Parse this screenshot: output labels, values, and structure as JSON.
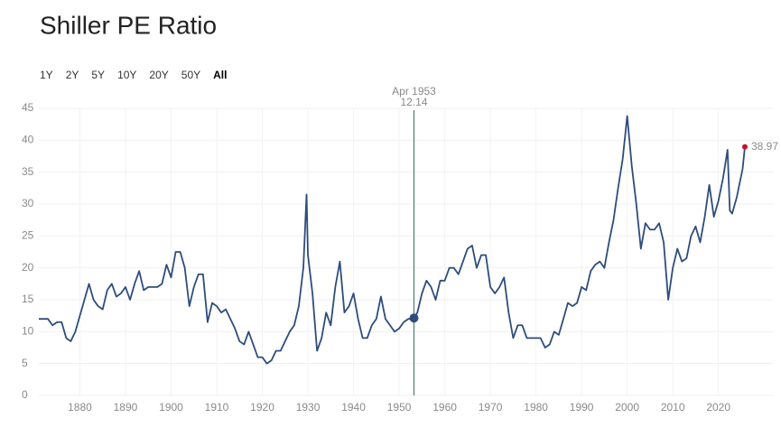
{
  "chart_data": {
    "type": "line",
    "title": "Shiller PE Ratio",
    "ranges": [
      "1Y",
      "2Y",
      "5Y",
      "10Y",
      "20Y",
      "50Y",
      "All"
    ],
    "active_range": 6,
    "hover": {
      "x": 1953.25,
      "label": "Apr 1953",
      "value": 12.14
    },
    "last_color": "#c8102e",
    "xlim": [
      1871,
      2026
    ],
    "ylim": [
      0,
      45
    ],
    "xticks": [
      1880,
      1890,
      1900,
      1910,
      1920,
      1930,
      1940,
      1950,
      1960,
      1970,
      1980,
      1990,
      2000,
      2010,
      2020
    ],
    "yticks": [
      0,
      5,
      10,
      15,
      20,
      25,
      30,
      35,
      40,
      45
    ],
    "grid": true,
    "series": [
      {
        "name": "Shiller PE Ratio",
        "color": "#2e4d7b",
        "x": [
          1871,
          1872,
          1873,
          1874,
          1875,
          1876,
          1877,
          1878,
          1879,
          1880,
          1881,
          1882,
          1883,
          1884,
          1885,
          1886,
          1887,
          1888,
          1889,
          1890,
          1891,
          1892,
          1893,
          1894,
          1895,
          1896,
          1897,
          1898,
          1899,
          1900,
          1901,
          1902,
          1903,
          1904,
          1905,
          1906,
          1907,
          1908,
          1909,
          1910,
          1911,
          1912,
          1913,
          1914,
          1915,
          1916,
          1917,
          1918,
          1919,
          1920,
          1921,
          1922,
          1923,
          1924,
          1925,
          1926,
          1927,
          1928,
          1929,
          1929.7,
          1930,
          1931,
          1932,
          1933,
          1934,
          1935,
          1936,
          1937,
          1938,
          1939,
          1940,
          1941,
          1942,
          1943,
          1944,
          1945,
          1946,
          1947,
          1948,
          1949,
          1950,
          1951,
          1952,
          1953.25,
          1954,
          1955,
          1956,
          1957,
          1958,
          1959,
          1960,
          1961,
          1962,
          1963,
          1964,
          1965,
          1966,
          1967,
          1968,
          1969,
          1970,
          1971,
          1972,
          1973,
          1974,
          1975,
          1976,
          1977,
          1978,
          1979,
          1980,
          1981,
          1982,
          1983,
          1984,
          1985,
          1986,
          1987,
          1988,
          1989,
          1990,
          1991,
          1992,
          1993,
          1994,
          1995,
          1996,
          1997,
          1998,
          1999,
          2000,
          2001,
          2002,
          2003,
          2004,
          2005,
          2006,
          2007,
          2008,
          2009,
          2010,
          2011,
          2012,
          2013,
          2014,
          2015,
          2016,
          2017,
          2018,
          2019,
          2020,
          2021,
          2022,
          2022.5,
          2023,
          2024,
          2025.3,
          2025.8
        ],
        "values": [
          12,
          12,
          12,
          11,
          11.5,
          11.5,
          9,
          8.5,
          10,
          12.5,
          15,
          17.5,
          15,
          14,
          13.5,
          16.5,
          17.5,
          15.5,
          16,
          17,
          15,
          17.5,
          19.5,
          16.5,
          17,
          17,
          17,
          17.5,
          20.5,
          18.5,
          22.5,
          22.5,
          20,
          14,
          17,
          19,
          19,
          11.5,
          14.5,
          14,
          13,
          13.5,
          12,
          10.5,
          8.5,
          8,
          10,
          8,
          6,
          6,
          5,
          5.5,
          7,
          7,
          8.5,
          10,
          11,
          14,
          20,
          31.5,
          22,
          16,
          7,
          9,
          13,
          11,
          17,
          21,
          13,
          14,
          16,
          12,
          9,
          9,
          11,
          12,
          15.5,
          12,
          11,
          10,
          10.5,
          11.5,
          12,
          12.14,
          13,
          16,
          18,
          17,
          15,
          18,
          18,
          20,
          20,
          19,
          21,
          23,
          23.5,
          20,
          22,
          22,
          17,
          16,
          17,
          18.5,
          13,
          9,
          11,
          11,
          9,
          9,
          9,
          9,
          7.5,
          8,
          10,
          9.5,
          12,
          14.5,
          14,
          14.5,
          17,
          16.5,
          19.5,
          20.5,
          21,
          20,
          24,
          27.5,
          32.5,
          37,
          43.8,
          36,
          30,
          23,
          27,
          26,
          26,
          27,
          24,
          15,
          20,
          23,
          21,
          21.5,
          25,
          26.5,
          24,
          28,
          33,
          28,
          30.5,
          34,
          38.5,
          29,
          28.5,
          31,
          35.5,
          38.97
        ]
      }
    ]
  }
}
